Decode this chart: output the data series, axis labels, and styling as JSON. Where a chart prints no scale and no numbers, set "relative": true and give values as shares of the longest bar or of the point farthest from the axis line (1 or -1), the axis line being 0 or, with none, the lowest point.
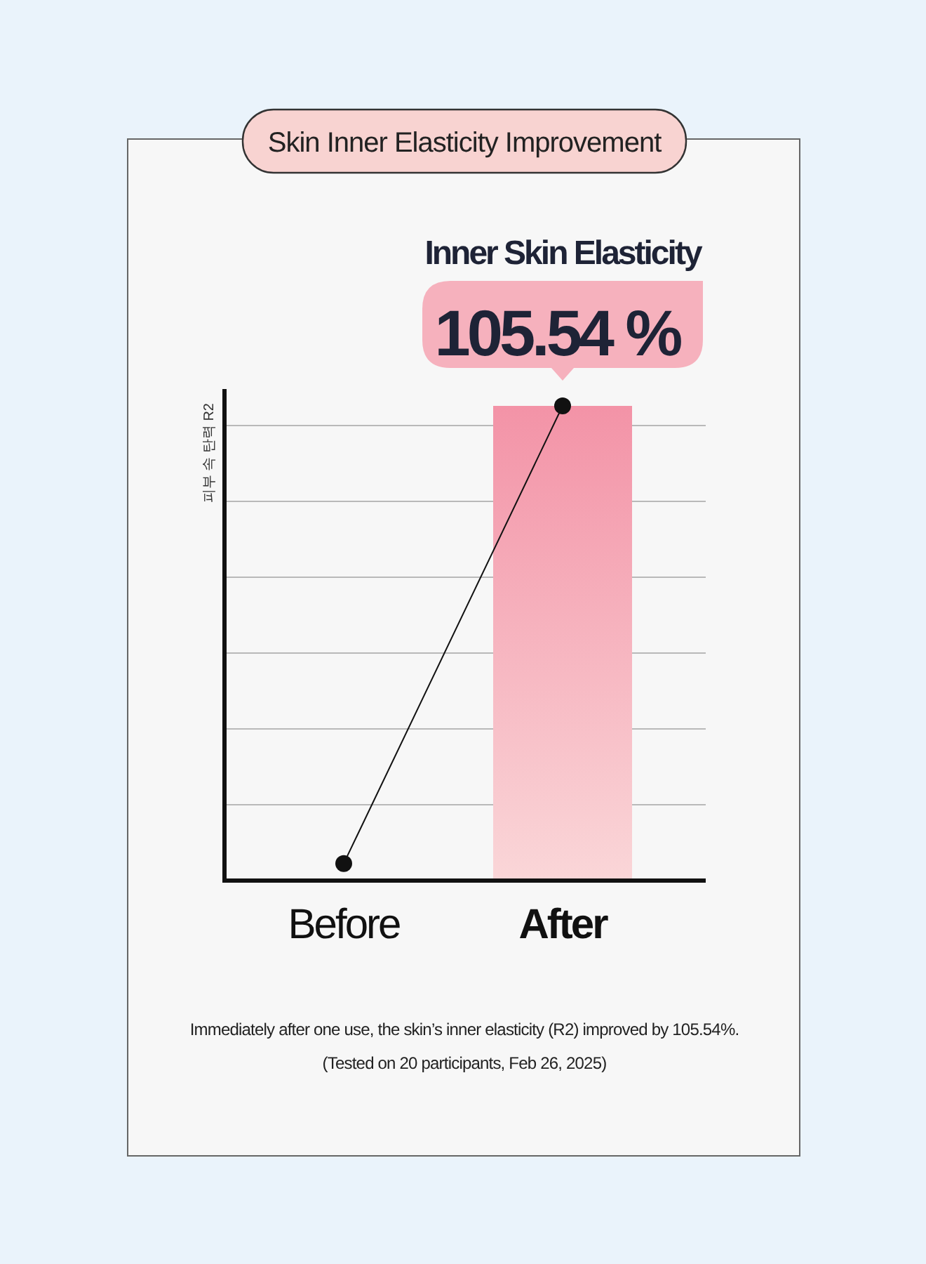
{
  "chart_data": {
    "type": "bar",
    "title": "Skin Inner Elasticity Improvement",
    "ylabel": "피부 속 탄력 R2",
    "categories": [
      "Before",
      "After"
    ],
    "relative": true,
    "grid": "y",
    "series": [
      {
        "color": "#f393a7",
        "values": [
          null,
          1
        ]
      },
      {
        "type": "line",
        "color": "#111111",
        "marker": "circle",
        "values": [
          0.036,
          1
        ]
      }
    ],
    "annotations": [
      "Inner Skin Elasticity",
      {
        "text": "105.54 %",
        "x": "After",
        "y": 1
      },
      "Immediately after one use, the skin’s inner elasticity (R2) improved by 105.54%.",
      "(Tested on 20 participants, Feb 26, 2025)"
    ]
  }
}
